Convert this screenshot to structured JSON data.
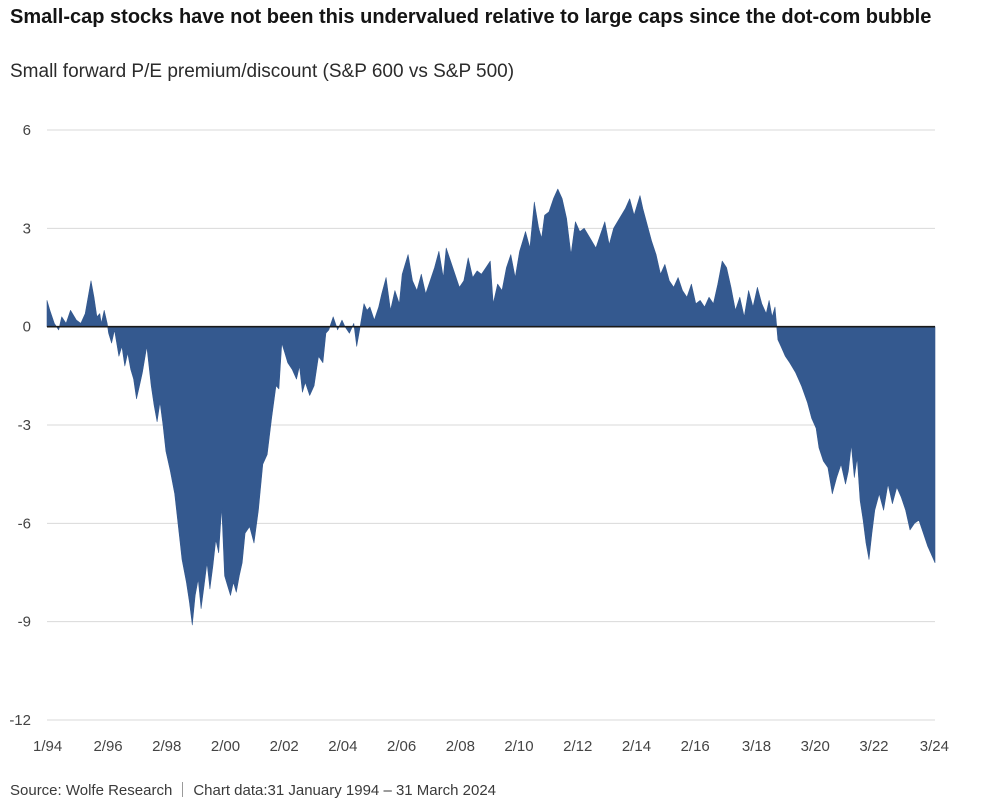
{
  "title": "Small-cap stocks have not been this undervalued relative to large caps since the dot-com bubble",
  "subtitle": "Small forward P/E premium/discount (S&P 600 vs S&P 500)",
  "source": "Source: Wolfe Research",
  "chart_note": "Chart data:31 January 1994 – 31 March 2024",
  "colors": {
    "fill": "#34598f",
    "grid": "#d9d9d9",
    "zero_line": "#1a1a1a"
  },
  "chart_data": {
    "type": "area",
    "title": "Small forward P/E premium/discount (S&P 600 vs S&P 500)",
    "xlabel": "",
    "ylabel": "",
    "ylim": [
      -12,
      6
    ],
    "yticks": [
      6,
      3,
      0,
      -3,
      -6,
      -9,
      -12
    ],
    "ytick_labels": [
      "6",
      "3",
      "0",
      "-3",
      "-6",
      "-9",
      "-12"
    ],
    "xlim": [
      1994.0,
      2024.25
    ],
    "xticks": [
      1994.0,
      1996.08,
      1998.08,
      2000.08,
      2002.08,
      2004.08,
      2006.08,
      2008.08,
      2010.08,
      2012.08,
      2014.08,
      2016.08,
      2018.17,
      2020.17,
      2022.17,
      2024.17
    ],
    "xtick_labels": [
      "1/94",
      "2/96",
      "2/98",
      "2/00",
      "2/02",
      "2/04",
      "2/06",
      "2/08",
      "2/10",
      "2/12",
      "2/14",
      "2/16",
      "3/18",
      "3/20",
      "3/22",
      "3/24"
    ],
    "grid": true,
    "legend": "none",
    "series": [
      {
        "x": [
          1994.0,
          1994.1,
          1994.25,
          1994.4,
          1994.5,
          1994.65,
          1994.8,
          1995.0,
          1995.15,
          1995.3,
          1995.5,
          1995.6,
          1995.7,
          1995.8,
          1995.85,
          1995.95,
          1996.05,
          1996.1,
          1996.2,
          1996.3,
          1996.45,
          1996.55,
          1996.65,
          1996.75,
          1996.85,
          1996.95,
          1997.05,
          1997.15,
          1997.25,
          1997.4,
          1997.55,
          1997.65,
          1997.75,
          1997.85,
          1997.95,
          1998.05,
          1998.2,
          1998.35,
          1998.5,
          1998.6,
          1998.75,
          1998.85,
          1998.95,
          1999.05,
          1999.15,
          1999.25,
          1999.35,
          1999.45,
          1999.55,
          1999.65,
          1999.75,
          1999.85,
          1999.95,
          2000.05,
          2000.15,
          2000.25,
          2000.35,
          2000.45,
          2000.55,
          2000.65,
          2000.75,
          2000.9,
          2001.05,
          2001.2,
          2001.35,
          2001.5,
          2001.65,
          2001.8,
          2001.9,
          2002.0,
          2002.1,
          2002.2,
          2002.35,
          2002.5,
          2002.6,
          2002.7,
          2002.8,
          2002.95,
          2003.1,
          2003.25,
          2003.4,
          2003.5,
          2003.6,
          2003.75,
          2003.9,
          2004.05,
          2004.15,
          2004.3,
          2004.45,
          2004.55,
          2004.65,
          2004.8,
          2004.9,
          2005.0,
          2005.15,
          2005.3,
          2005.4,
          2005.55,
          2005.7,
          2005.85,
          2006.0,
          2006.1,
          2006.2,
          2006.3,
          2006.45,
          2006.6,
          2006.75,
          2006.9,
          2007.05,
          2007.2,
          2007.35,
          2007.5,
          2007.6,
          2007.75,
          2007.9,
          2008.05,
          2008.2,
          2008.35,
          2008.5,
          2008.65,
          2008.8,
          2008.95,
          2009.1,
          2009.2,
          2009.35,
          2009.5,
          2009.65,
          2009.8,
          2009.95,
          2010.1,
          2010.2,
          2010.3,
          2010.45,
          2010.6,
          2010.75,
          2010.85,
          2010.95,
          2011.1,
          2011.25,
          2011.4,
          2011.55,
          2011.7,
          2011.85,
          2012.0,
          2012.15,
          2012.3,
          2012.5,
          2012.7,
          2012.85,
          2013.0,
          2013.15,
          2013.3,
          2013.5,
          2013.7,
          2013.85,
          2014.0,
          2014.1,
          2014.2,
          2014.3,
          2014.45,
          2014.6,
          2014.75,
          2014.9,
          2015.05,
          2015.2,
          2015.35,
          2015.5,
          2015.65,
          2015.8,
          2015.95,
          2016.1,
          2016.25,
          2016.4,
          2016.55,
          2016.7,
          2016.85,
          2017.0,
          2017.15,
          2017.3,
          2017.45,
          2017.6,
          2017.75,
          2017.9,
          2018.05,
          2018.2,
          2018.35,
          2018.5,
          2018.6,
          2018.7,
          2018.8,
          2018.9,
          2019.0,
          2019.15,
          2019.3,
          2019.5,
          2019.7,
          2019.9,
          2020.05,
          2020.2,
          2020.3,
          2020.45,
          2020.6,
          2020.75,
          2020.9,
          2021.05,
          2021.2,
          2021.3,
          2021.4,
          2021.5,
          2021.6,
          2021.7,
          2021.8,
          2021.9,
          2022.0,
          2022.1,
          2022.2,
          2022.35,
          2022.5,
          2022.65,
          2022.8,
          2022.95,
          2023.1,
          2023.25,
          2023.4,
          2023.55,
          2023.7,
          2023.85,
          2024.0,
          2024.1,
          2024.25
        ],
        "y": [
          0.8,
          0.5,
          0.1,
          -0.1,
          0.3,
          0.1,
          0.5,
          0.2,
          0.1,
          0.4,
          1.4,
          0.9,
          0.3,
          0.4,
          0.1,
          0.5,
          0.1,
          -0.2,
          -0.5,
          -0.1,
          -0.9,
          -0.6,
          -1.2,
          -0.8,
          -1.3,
          -1.6,
          -2.2,
          -1.8,
          -1.4,
          -0.6,
          -1.8,
          -2.4,
          -2.9,
          -2.3,
          -3.0,
          -3.8,
          -4.4,
          -5.1,
          -6.3,
          -7.1,
          -7.8,
          -8.4,
          -9.1,
          -8.2,
          -7.7,
          -8.6,
          -7.9,
          -7.2,
          -8.0,
          -7.3,
          -6.5,
          -6.9,
          -5.5,
          -7.6,
          -7.9,
          -8.2,
          -7.8,
          -8.1,
          -7.6,
          -7.2,
          -6.3,
          -6.1,
          -6.6,
          -5.6,
          -4.2,
          -3.9,
          -2.8,
          -1.8,
          -1.9,
          -0.5,
          -0.8,
          -1.1,
          -1.3,
          -1.6,
          -1.2,
          -2.0,
          -1.7,
          -2.1,
          -1.8,
          -0.9,
          -1.1,
          -0.2,
          -0.1,
          0.3,
          -0.1,
          0.2,
          0.0,
          -0.2,
          0.1,
          -0.6,
          -0.1,
          0.7,
          0.5,
          0.6,
          0.2,
          0.6,
          1.0,
          1.5,
          0.5,
          1.1,
          0.7,
          1.6,
          1.9,
          2.2,
          1.4,
          1.1,
          1.6,
          1.0,
          1.4,
          1.8,
          2.3,
          1.5,
          2.4,
          2.0,
          1.6,
          1.2,
          1.4,
          2.1,
          1.5,
          1.7,
          1.6,
          1.8,
          2.0,
          0.7,
          1.3,
          1.1,
          1.8,
          2.2,
          1.5,
          2.3,
          2.6,
          2.9,
          2.4,
          3.8,
          3.0,
          2.7,
          3.4,
          3.5,
          3.9,
          4.2,
          3.9,
          3.3,
          2.2,
          3.2,
          2.9,
          3.0,
          2.7,
          2.4,
          2.8,
          3.2,
          2.5,
          3.0,
          3.3,
          3.6,
          3.9,
          3.4,
          3.7,
          4.0,
          3.6,
          3.1,
          2.6,
          2.2,
          1.6,
          1.9,
          1.4,
          1.2,
          1.5,
          1.1,
          0.9,
          1.3,
          0.7,
          0.8,
          0.6,
          0.9,
          0.7,
          1.3,
          2.0,
          1.8,
          1.2,
          0.5,
          0.9,
          0.3,
          1.1,
          0.6,
          1.2,
          0.7,
          0.4,
          0.8,
          0.3,
          0.6,
          -0.4,
          -0.6,
          -0.9,
          -1.1,
          -1.4,
          -1.8,
          -2.3,
          -2.8,
          -3.1,
          -3.7,
          -4.1,
          -4.3,
          -5.1,
          -4.6,
          -4.2,
          -4.8,
          -4.4,
          -3.6,
          -4.6,
          -4.0,
          -5.3,
          -5.9,
          -6.6,
          -7.1,
          -6.3,
          -5.6,
          -5.1,
          -5.6,
          -4.8,
          -5.4,
          -4.9,
          -5.2,
          -5.6,
          -6.2,
          -6.0,
          -5.9,
          -6.3,
          -6.7,
          -6.9,
          -7.2
        ]
      }
    ]
  }
}
